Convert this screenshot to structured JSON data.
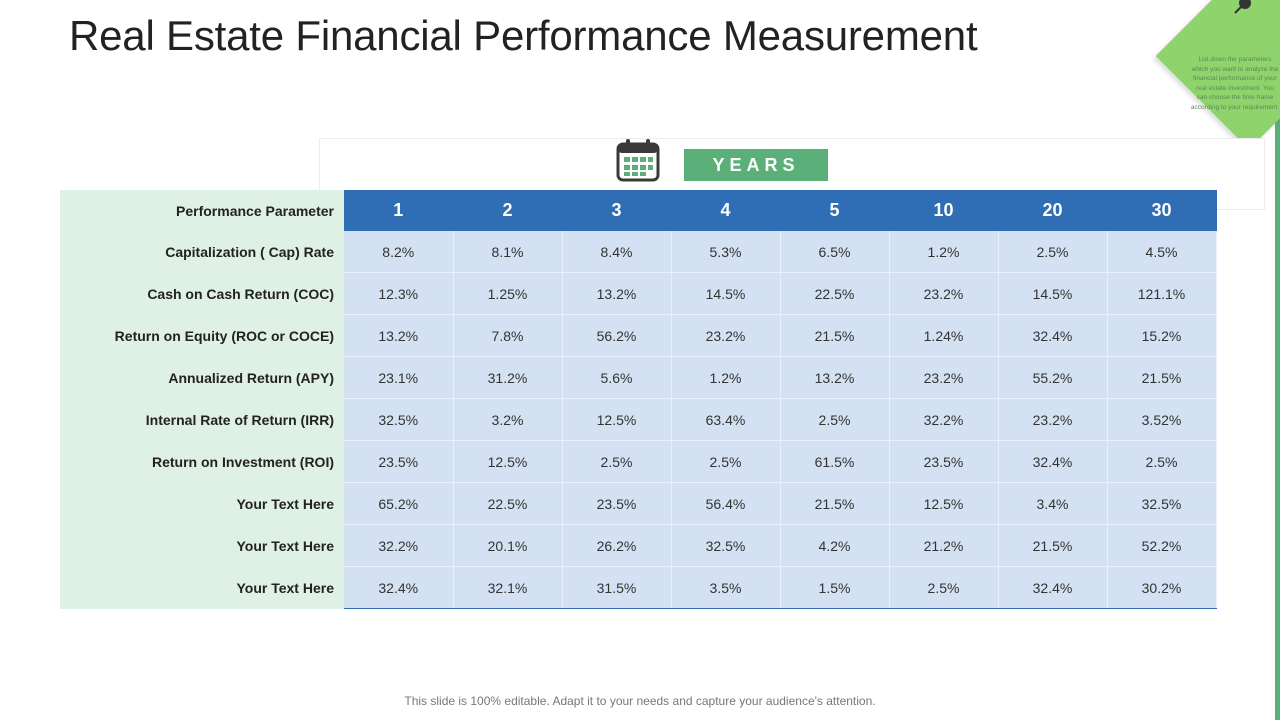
{
  "title": "Real Estate Financial Performance Measurement",
  "sticky_note": {
    "text": "List down the parameters which you want to analyze the financial performance of your real estate investment. You can choose the time frame according to your requirement."
  },
  "years_label": "YEARS",
  "table": {
    "header_label": "Performance Parameter",
    "years": [
      "1",
      "2",
      "3",
      "4",
      "5",
      "10",
      "20",
      "30"
    ],
    "rows": [
      {
        "label": "Capitalization ( Cap) Rate",
        "values": [
          "8.2%",
          "8.1%",
          "8.4%",
          "5.3%",
          "6.5%",
          "1.2%",
          "2.5%",
          "4.5%"
        ]
      },
      {
        "label": "Cash on Cash Return (COC)",
        "values": [
          "12.3%",
          "1.25%",
          "13.2%",
          "14.5%",
          "22.5%",
          "23.2%",
          "14.5%",
          "121.1%"
        ]
      },
      {
        "label": "Return on Equity (ROC or COCE)",
        "values": [
          "13.2%",
          "7.8%",
          "56.2%",
          "23.2%",
          "21.5%",
          "1.24%",
          "32.4%",
          "15.2%"
        ]
      },
      {
        "label": "Annualized Return (APY)",
        "values": [
          "23.1%",
          "31.2%",
          "5.6%",
          "1.2%",
          "13.2%",
          "23.2%",
          "55.2%",
          "21.5%"
        ]
      },
      {
        "label": "Internal Rate of Return (IRR)",
        "values": [
          "32.5%",
          "3.2%",
          "12.5%",
          "63.4%",
          "2.5%",
          "32.2%",
          "23.2%",
          "3.52%"
        ]
      },
      {
        "label": "Return on Investment (ROI)",
        "values": [
          "23.5%",
          "12.5%",
          "2.5%",
          "2.5%",
          "61.5%",
          "23.5%",
          "32.4%",
          "2.5%"
        ]
      },
      {
        "label": "Your Text Here",
        "values": [
          "65.2%",
          "22.5%",
          "23.5%",
          "56.4%",
          "21.5%",
          "12.5%",
          "3.4%",
          "32.5%"
        ]
      },
      {
        "label": "Your Text Here",
        "values": [
          "32.2%",
          "20.1%",
          "26.2%",
          "32.5%",
          "4.2%",
          "21.2%",
          "21.5%",
          "52.2%"
        ]
      },
      {
        "label": "Your Text Here",
        "values": [
          "32.4%",
          "32.1%",
          "31.5%",
          "3.5%",
          "1.5%",
          "2.5%",
          "32.4%",
          "30.2%"
        ]
      }
    ]
  },
  "footer": "This slide is 100% editable. Adapt it to your needs and capture your audience's attention.",
  "colors": {
    "header_blue": "#2f6db5",
    "cell_blue": "#d3e1f2",
    "param_green": "#dff0e4",
    "accent_green": "#5bb07a",
    "sticky_green": "#8fd36c"
  },
  "icons": [
    "calendar-icon",
    "pushpin-icon"
  ]
}
